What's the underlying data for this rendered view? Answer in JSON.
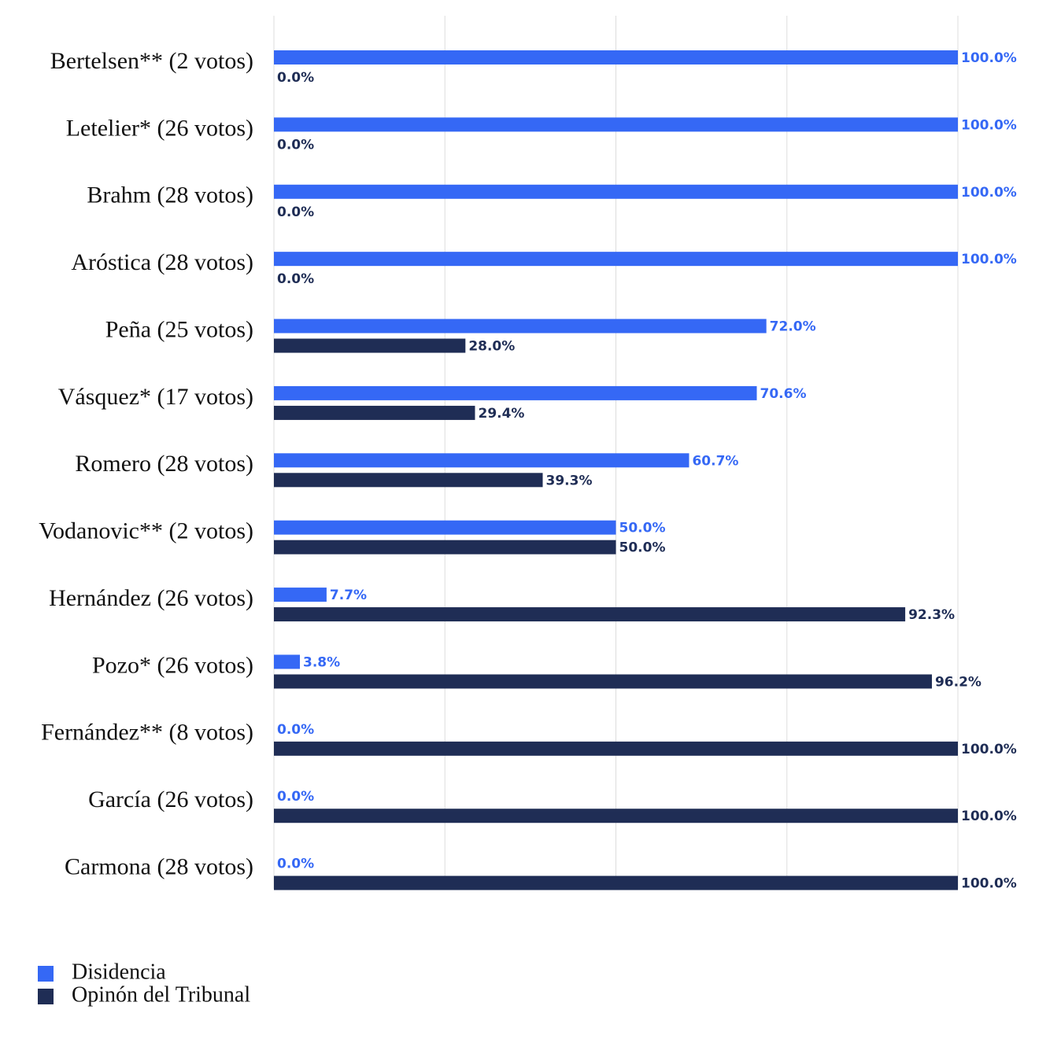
{
  "chart_data": {
    "type": "bar",
    "orientation": "horizontal",
    "categories": [
      "Bertelsen** (2 votos)",
      "Letelier* (26 votos)",
      "Brahm (28 votos)",
      "Aróstica (28 votos)",
      "Peña (25 votos)",
      "Vásquez* (17 votos)",
      "Romero (28 votos)",
      "Vodanovic** (2 votos)",
      "Hernández (26 votos)",
      "Pozo* (26 votos)",
      "Fernández** (8 votos)",
      "García (26 votos)",
      "Carmona (28 votos)"
    ],
    "series": [
      {
        "name": "Disidencia",
        "color": "#3568f5",
        "values": [
          100,
          100,
          100,
          100,
          72.0,
          70.6,
          60.7,
          50.0,
          7.7,
          3.8,
          0,
          0,
          0
        ],
        "value_labels": [
          "100.0%",
          "100.0%",
          "100.0%",
          "100.0%",
          "72.0%",
          "70.6%",
          "60.7%",
          "50.0%",
          "7.7%",
          "3.8%",
          "0.0%",
          "0.0%",
          "0.0%"
        ]
      },
      {
        "name": "Opinón del Tribunal",
        "color": "#1f2d55",
        "values": [
          0,
          0,
          0,
          0,
          28.0,
          29.4,
          39.3,
          50.0,
          92.3,
          96.2,
          100,
          100,
          100
        ],
        "value_labels": [
          "0.0%",
          "0.0%",
          "0.0%",
          "0.0%",
          "28.0%",
          "29.4%",
          "39.3%",
          "50.0%",
          "92.3%",
          "96.2%",
          "100.0%",
          "100.0%",
          "100.0%"
        ]
      }
    ],
    "xlim": [
      0,
      100
    ],
    "xticks": [
      0,
      25,
      50,
      75,
      100
    ],
    "grid": true,
    "legend": "bottom-left"
  }
}
